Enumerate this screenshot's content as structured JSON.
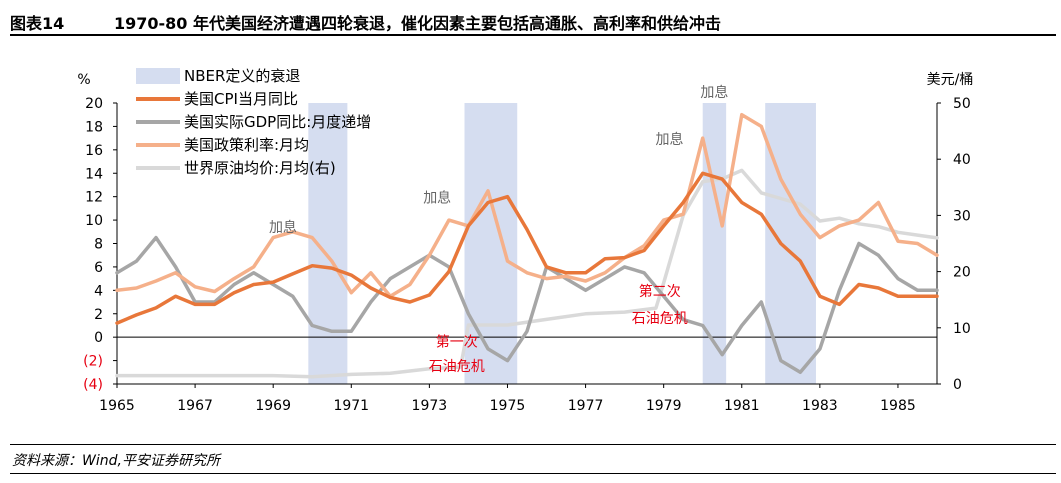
{
  "header": {
    "figure_label": "图表14",
    "title": "1970-80 年代美国经济遭遇四轮衰退，催化因素主要包括高通胀、高利率和供给冲击"
  },
  "source": "资料来源：Wind,平安证券研究所",
  "chart_data": {
    "type": "line",
    "left_unit": "%",
    "right_unit": "美元/桶",
    "left_ticks": [
      "20",
      "18",
      "16",
      "14",
      "12",
      "10",
      "8",
      "6",
      "4",
      "2",
      "0",
      "(2)",
      "(4)"
    ],
    "left_tick_values": [
      20,
      18,
      16,
      14,
      12,
      10,
      8,
      6,
      4,
      2,
      0,
      -2,
      -4
    ],
    "right_ticks": [
      "50",
      "40",
      "30",
      "20",
      "10",
      "0"
    ],
    "right_tick_values": [
      50,
      40,
      30,
      20,
      10,
      0
    ],
    "x_ticks": [
      "1965",
      "1967",
      "1969",
      "1971",
      "1973",
      "1975",
      "1977",
      "1979",
      "1981",
      "1983",
      "1985"
    ],
    "x_tick_values": [
      1965,
      1967,
      1969,
      1971,
      1973,
      1975,
      1977,
      1979,
      1981,
      1983,
      1985
    ],
    "xlim": [
      1965,
      1986
    ],
    "ylim_left": [
      -4,
      20
    ],
    "ylim_right": [
      0,
      50
    ],
    "recessions": [
      [
        1969.9,
        1970.9
      ],
      [
        1973.9,
        1975.25
      ],
      [
        1980.0,
        1980.6
      ],
      [
        1981.6,
        1982.9
      ]
    ],
    "legend": [
      {
        "label": "NBER定义的衰退",
        "kind": "band",
        "color": "#d5ddf0"
      },
      {
        "label": "美国CPI当月同比",
        "kind": "line",
        "color": "#e8773a"
      },
      {
        "label": "美国实际GDP同比:月度递增",
        "kind": "line",
        "color": "#a6a6a6"
      },
      {
        "label": "美国政策利率:月均",
        "kind": "line",
        "color": "#f5b08a"
      },
      {
        "label": "世界原油均价:月均(右)",
        "kind": "line",
        "color": "#d9d9d9"
      }
    ],
    "series": [
      {
        "name": "美国CPI当月同比",
        "axis": "left",
        "color": "#e8773a",
        "x": [
          1965.0,
          1965.5,
          1966.0,
          1966.5,
          1967.0,
          1967.5,
          1968.0,
          1968.5,
          1969.0,
          1969.5,
          1970.0,
          1970.5,
          1971.0,
          1971.5,
          1972.0,
          1972.5,
          1973.0,
          1973.5,
          1974.0,
          1974.5,
          1975.0,
          1975.5,
          1976.0,
          1976.5,
          1977.0,
          1977.5,
          1978.0,
          1978.5,
          1979.0,
          1979.5,
          1980.0,
          1980.5,
          1981.0,
          1981.5,
          1982.0,
          1982.5,
          1983.0,
          1983.5,
          1984.0,
          1984.5,
          1985.0,
          1985.5,
          1986.0
        ],
        "y": [
          1.2,
          1.9,
          2.5,
          3.5,
          2.8,
          2.8,
          3.8,
          4.5,
          4.7,
          5.4,
          6.1,
          5.9,
          5.3,
          4.2,
          3.4,
          3.0,
          3.6,
          5.6,
          9.5,
          11.5,
          12.0,
          9.2,
          6.0,
          5.5,
          5.5,
          6.7,
          6.8,
          7.4,
          9.5,
          11.5,
          14.0,
          13.5,
          11.5,
          10.5,
          8.0,
          6.5,
          3.5,
          2.8,
          4.5,
          4.2,
          3.5,
          3.5,
          3.5
        ]
      },
      {
        "name": "美国实际GDP同比:月度递增",
        "axis": "left",
        "color": "#a6a6a6",
        "x": [
          1965.0,
          1965.5,
          1966.0,
          1966.5,
          1967.0,
          1967.5,
          1968.0,
          1968.5,
          1969.0,
          1969.5,
          1970.0,
          1970.5,
          1971.0,
          1971.5,
          1972.0,
          1972.5,
          1973.0,
          1973.5,
          1974.0,
          1974.5,
          1975.0,
          1975.5,
          1976.0,
          1976.5,
          1977.0,
          1977.5,
          1978.0,
          1978.5,
          1979.0,
          1979.5,
          1980.0,
          1980.5,
          1981.0,
          1981.5,
          1982.0,
          1982.5,
          1983.0,
          1983.5,
          1984.0,
          1984.5,
          1985.0,
          1985.5,
          1986.0
        ],
        "y": [
          5.5,
          6.5,
          8.5,
          6.0,
          3.0,
          3.0,
          4.5,
          5.5,
          4.5,
          3.5,
          1.0,
          0.5,
          0.5,
          3.0,
          5.0,
          6.0,
          7.0,
          6.0,
          2.0,
          -1.0,
          -2.0,
          0.5,
          6.0,
          5.0,
          4.0,
          5.0,
          6.0,
          5.5,
          3.5,
          1.5,
          1.0,
          -1.5,
          1.0,
          3.0,
          -2.0,
          -3.0,
          -1.0,
          4.0,
          8.0,
          7.0,
          5.0,
          4.0,
          4.0
        ]
      },
      {
        "name": "美国政策利率:月均",
        "axis": "left",
        "color": "#f5b08a",
        "x": [
          1965.0,
          1965.5,
          1966.0,
          1966.5,
          1967.0,
          1967.5,
          1968.0,
          1968.5,
          1969.0,
          1969.5,
          1970.0,
          1970.5,
          1971.0,
          1971.5,
          1972.0,
          1972.5,
          1973.0,
          1973.5,
          1974.0,
          1974.5,
          1975.0,
          1975.5,
          1976.0,
          1976.5,
          1977.0,
          1977.5,
          1978.0,
          1978.5,
          1979.0,
          1979.5,
          1980.0,
          1980.5,
          1981.0,
          1981.5,
          1982.0,
          1982.5,
          1983.0,
          1983.5,
          1984.0,
          1984.5,
          1985.0,
          1985.5,
          1986.0
        ],
        "y": [
          4.0,
          4.2,
          4.8,
          5.5,
          4.3,
          3.9,
          5.0,
          6.0,
          8.5,
          9.0,
          8.5,
          6.5,
          3.8,
          5.5,
          3.5,
          4.5,
          7.0,
          10.0,
          9.5,
          12.5,
          6.5,
          5.5,
          5.0,
          5.2,
          4.8,
          5.5,
          6.8,
          7.8,
          10.0,
          10.5,
          17.0,
          9.5,
          19.0,
          18.0,
          13.5,
          10.5,
          8.5,
          9.5,
          10.0,
          11.5,
          8.2,
          8.0,
          7.0
        ]
      },
      {
        "name": "世界原油均价:月均(右)",
        "axis": "right",
        "color": "#d9d9d9",
        "x": [
          1965.0,
          1966.0,
          1967.0,
          1968.0,
          1969.0,
          1970.0,
          1971.0,
          1972.0,
          1973.0,
          1973.8,
          1974.0,
          1975.0,
          1976.0,
          1977.0,
          1978.0,
          1978.8,
          1979.0,
          1979.5,
          1980.0,
          1980.5,
          1981.0,
          1981.5,
          1982.0,
          1982.5,
          1983.0,
          1983.5,
          1984.0,
          1984.5,
          1985.0,
          1985.5,
          1986.0
        ],
        "y": [
          1.5,
          1.5,
          1.5,
          1.5,
          1.5,
          1.3,
          1.7,
          1.9,
          2.7,
          3.0,
          10.5,
          10.5,
          11.5,
          12.5,
          12.8,
          13.5,
          18.0,
          30.0,
          36.0,
          36.5,
          38.0,
          34.0,
          33.0,
          32.0,
          29.0,
          29.5,
          28.5,
          28.0,
          27.0,
          26.5,
          26.0
        ]
      }
    ],
    "annotations": [
      {
        "text": "加息",
        "x": 1969.25,
        "y": 9.0,
        "color": "#666666"
      },
      {
        "text": "加息",
        "x": 1973.2,
        "y": 11.5,
        "color": "#666666"
      },
      {
        "text": "加息",
        "x": 1979.15,
        "y": 16.5,
        "color": "#666666"
      },
      {
        "text": "加息",
        "x": 1980.3,
        "y": 20.5,
        "color": "#666666"
      },
      {
        "text": "第一次",
        "x": 1973.7,
        "y": -0.8,
        "color": "#e60012"
      },
      {
        "text": "石油危机",
        "x": 1973.7,
        "y": -2.9,
        "color": "#e60012"
      },
      {
        "text": "第二次",
        "x": 1978.9,
        "y": 3.5,
        "color": "#e60012"
      },
      {
        "text": "石油危机",
        "x": 1978.9,
        "y": 1.2,
        "color": "#e60012"
      }
    ]
  }
}
